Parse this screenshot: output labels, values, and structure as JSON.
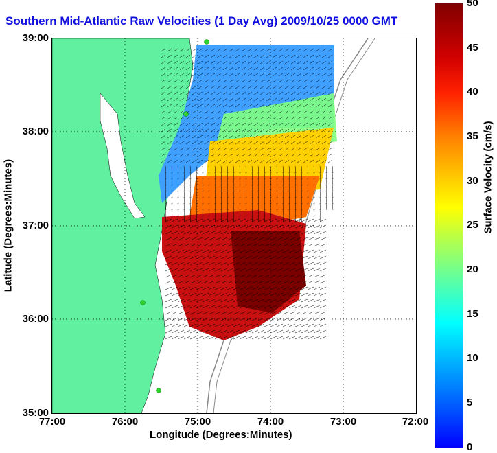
{
  "title": "Southern Mid-Atlantic Raw Velocities (1 Day Avg) 2009/10/25 0000 GMT",
  "xlabel": "Longitude (Degrees:Minutes)",
  "ylabel": "Latitude (Degrees:Minutes)",
  "lat_ticks": [
    "39:00",
    "38:00",
    "37:00",
    "36:00",
    "35:00"
  ],
  "lon_ticks": [
    "77:00",
    "76:00",
    "75:00",
    "74:00",
    "73:00",
    "72:00"
  ],
  "colorbar": {
    "label": "Surface Velocity (cm/s)",
    "ticks": [
      "50",
      "45",
      "40",
      "35",
      "30",
      "25",
      "20",
      "15",
      "10",
      "5",
      "0"
    ]
  },
  "colors": {
    "land": "#60f0a0",
    "title": "#1010e0"
  }
}
